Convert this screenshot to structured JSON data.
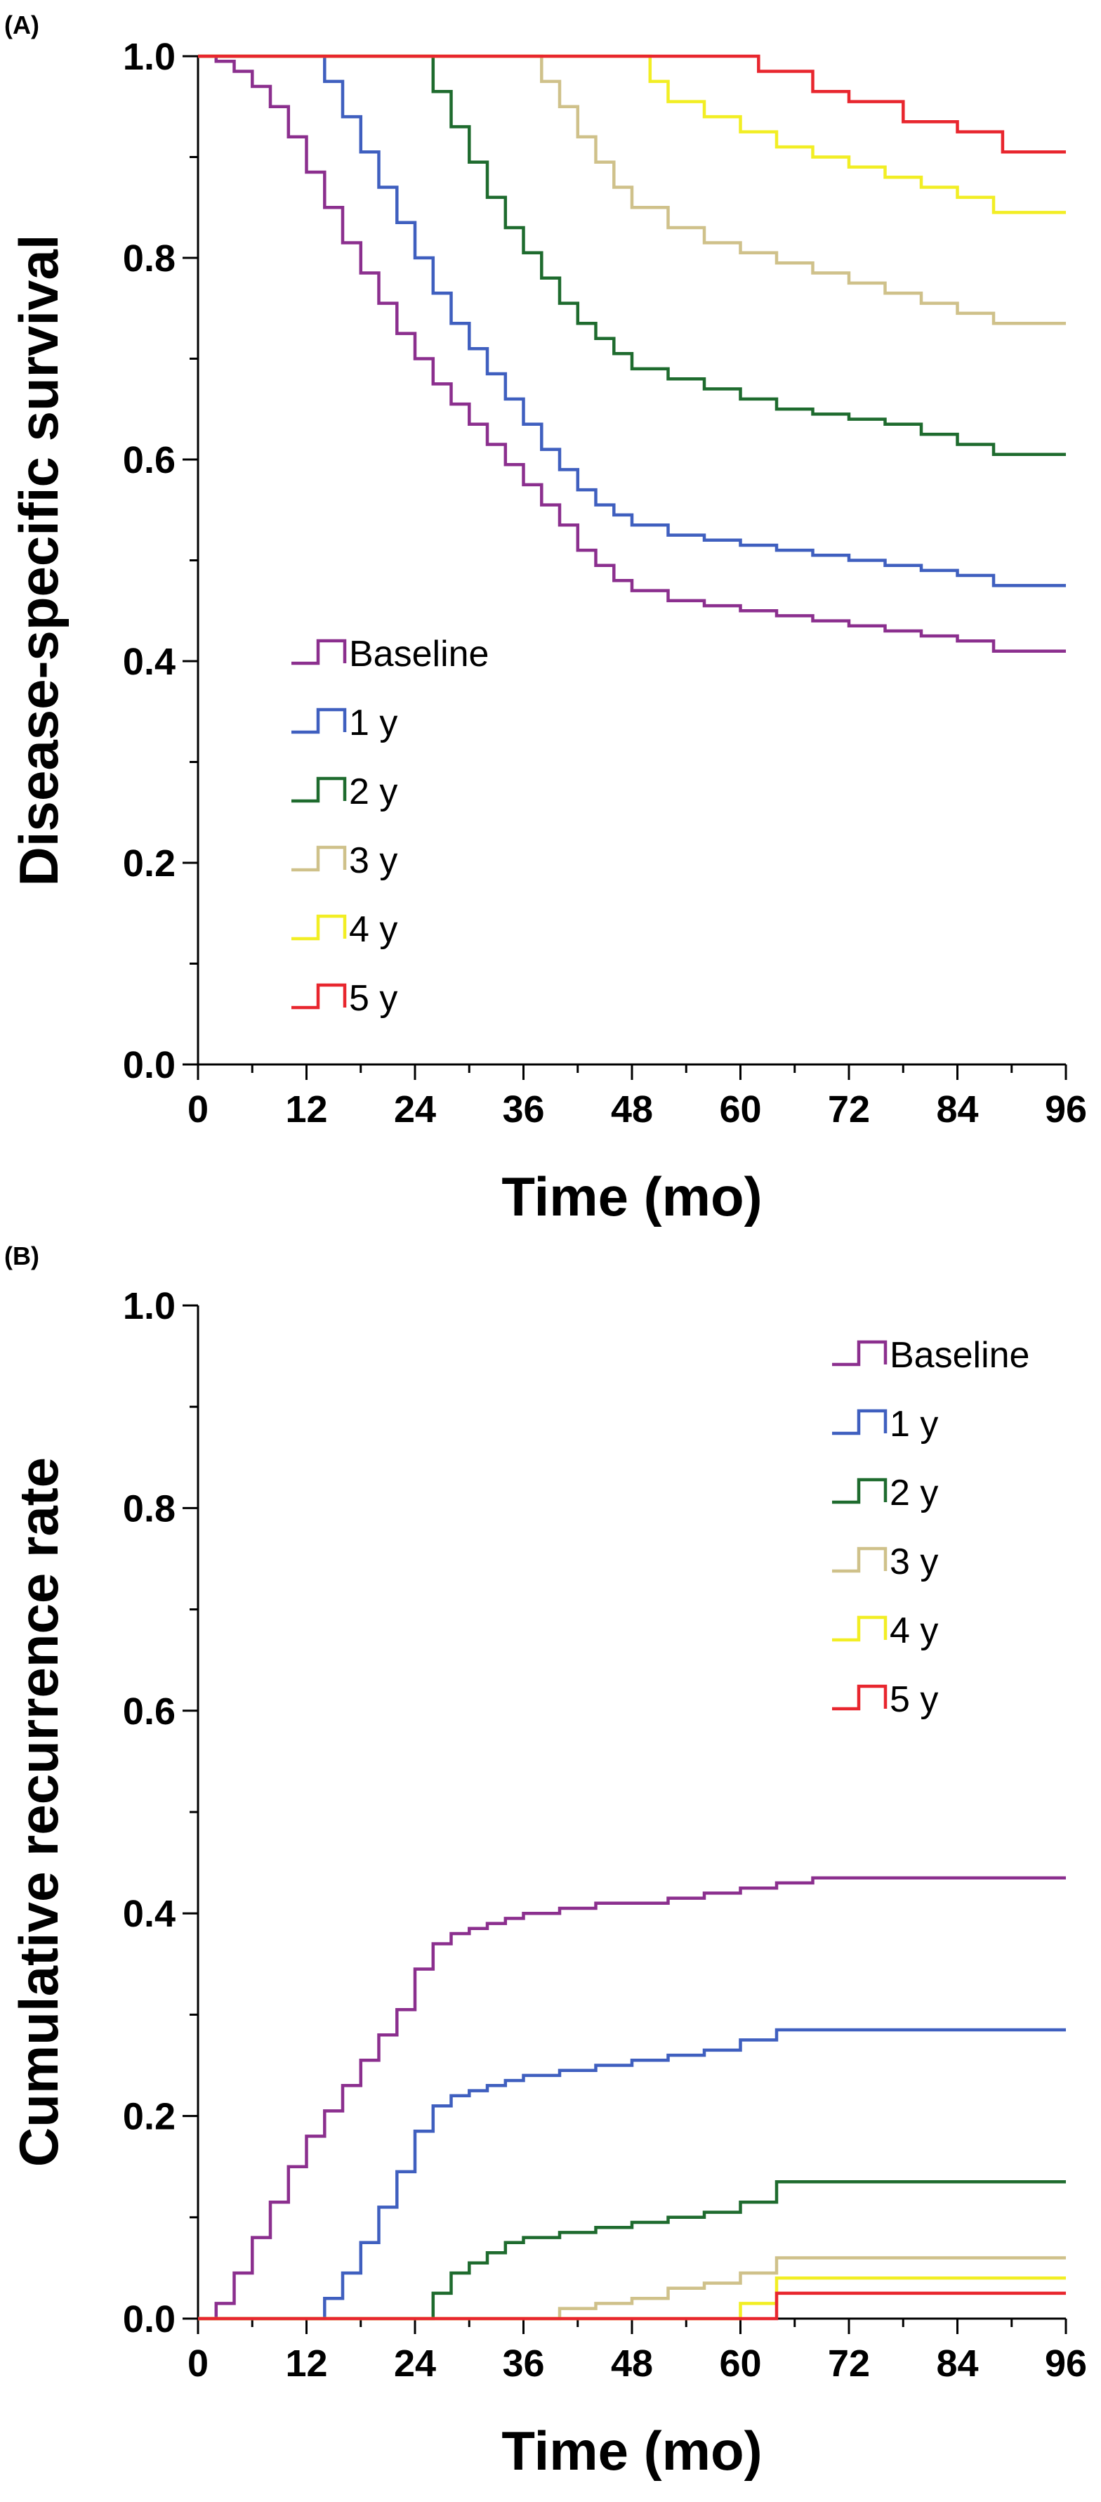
{
  "chart_data": [
    {
      "panel_label": "(A)",
      "type": "line",
      "step": true,
      "xlabel": "Time (mo)",
      "ylabel": "Disease-specific survival",
      "xlim": [
        0,
        96
      ],
      "ylim": [
        0,
        1.0
      ],
      "xticks": [
        "0",
        "12",
        "24",
        "36",
        "48",
        "60",
        "72",
        "84",
        "96"
      ],
      "yticks": [
        "0.0",
        "0.2",
        "0.4",
        "0.6",
        "0.8",
        "1.0"
      ],
      "grid": false,
      "legend_position": "lower-left",
      "series": [
        {
          "name": "Baseline",
          "color": "#8B2F8E",
          "x": [
            0,
            2,
            4,
            6,
            8,
            10,
            12,
            14,
            16,
            18,
            20,
            22,
            24,
            26,
            28,
            30,
            32,
            34,
            36,
            38,
            40,
            42,
            44,
            46,
            48,
            52,
            56,
            60,
            64,
            68,
            72,
            76,
            80,
            84,
            88,
            96
          ],
          "y": [
            1.0,
            0.995,
            0.985,
            0.97,
            0.95,
            0.92,
            0.885,
            0.85,
            0.815,
            0.785,
            0.755,
            0.725,
            0.7,
            0.675,
            0.655,
            0.635,
            0.615,
            0.595,
            0.575,
            0.555,
            0.535,
            0.51,
            0.495,
            0.48,
            0.47,
            0.46,
            0.455,
            0.45,
            0.445,
            0.44,
            0.435,
            0.43,
            0.425,
            0.42,
            0.41,
            0.41
          ]
        },
        {
          "name": "1 y",
          "color": "#3F5FBF",
          "x": [
            0,
            13,
            14,
            16,
            18,
            20,
            22,
            24,
            26,
            28,
            30,
            32,
            34,
            36,
            38,
            40,
            42,
            44,
            46,
            48,
            52,
            56,
            60,
            64,
            68,
            72,
            76,
            80,
            84,
            88,
            96
          ],
          "y": [
            1.0,
            1.0,
            0.975,
            0.94,
            0.905,
            0.87,
            0.835,
            0.8,
            0.765,
            0.735,
            0.71,
            0.685,
            0.66,
            0.635,
            0.61,
            0.59,
            0.57,
            0.555,
            0.545,
            0.535,
            0.525,
            0.52,
            0.515,
            0.51,
            0.505,
            0.5,
            0.495,
            0.49,
            0.485,
            0.475,
            0.475
          ]
        },
        {
          "name": "2 y",
          "color": "#1E6B2E",
          "x": [
            0,
            25,
            26,
            28,
            30,
            32,
            34,
            36,
            38,
            40,
            42,
            44,
            46,
            48,
            52,
            56,
            60,
            64,
            68,
            72,
            76,
            80,
            84,
            88,
            96
          ],
          "y": [
            1.0,
            1.0,
            0.965,
            0.93,
            0.895,
            0.86,
            0.83,
            0.805,
            0.78,
            0.755,
            0.735,
            0.72,
            0.705,
            0.69,
            0.68,
            0.67,
            0.66,
            0.65,
            0.645,
            0.64,
            0.635,
            0.625,
            0.615,
            0.605,
            0.605
          ]
        },
        {
          "name": "3 y",
          "color": "#CFC18A",
          "x": [
            0,
            37,
            38,
            40,
            42,
            44,
            46,
            48,
            52,
            56,
            60,
            64,
            68,
            72,
            76,
            80,
            84,
            88,
            96
          ],
          "y": [
            1.0,
            1.0,
            0.975,
            0.95,
            0.92,
            0.895,
            0.87,
            0.85,
            0.83,
            0.815,
            0.805,
            0.795,
            0.785,
            0.775,
            0.765,
            0.755,
            0.745,
            0.735,
            0.735
          ]
        },
        {
          "name": "4 y",
          "color": "#F2EE24",
          "x": [
            0,
            49,
            50,
            52,
            56,
            60,
            64,
            68,
            72,
            76,
            80,
            84,
            88,
            96
          ],
          "y": [
            1.0,
            1.0,
            0.975,
            0.955,
            0.94,
            0.925,
            0.91,
            0.9,
            0.89,
            0.88,
            0.87,
            0.86,
            0.845,
            0.845
          ]
        },
        {
          "name": "5 y",
          "color": "#E8262E",
          "x": [
            0,
            61,
            62,
            68,
            72,
            78,
            84,
            89,
            96
          ],
          "y": [
            1.0,
            1.0,
            0.985,
            0.965,
            0.955,
            0.935,
            0.925,
            0.905,
            0.905
          ]
        }
      ]
    },
    {
      "panel_label": "(B)",
      "type": "line",
      "step": true,
      "xlabel": "Time (mo)",
      "ylabel": "Cumulative recurrence rate",
      "xlim": [
        0,
        96
      ],
      "ylim": [
        0,
        1.0
      ],
      "xticks": [
        "0",
        "12",
        "24",
        "36",
        "48",
        "60",
        "72",
        "84",
        "96"
      ],
      "yticks": [
        "0.0",
        "0.2",
        "0.4",
        "0.6",
        "0.8",
        "1.0"
      ],
      "grid": false,
      "legend_position": "top-right",
      "series": [
        {
          "name": "Baseline",
          "color": "#8B2F8E",
          "x": [
            0,
            2,
            4,
            6,
            8,
            10,
            12,
            14,
            16,
            18,
            20,
            22,
            24,
            26,
            28,
            30,
            32,
            34,
            36,
            40,
            44,
            48,
            52,
            56,
            60,
            64,
            68,
            96
          ],
          "y": [
            0,
            0.015,
            0.045,
            0.08,
            0.115,
            0.15,
            0.18,
            0.205,
            0.23,
            0.255,
            0.28,
            0.305,
            0.345,
            0.37,
            0.38,
            0.385,
            0.39,
            0.395,
            0.4,
            0.405,
            0.41,
            0.41,
            0.415,
            0.42,
            0.425,
            0.43,
            0.435,
            0.435
          ]
        },
        {
          "name": "1 y",
          "color": "#3F5FBF",
          "x": [
            0,
            13,
            14,
            16,
            18,
            20,
            22,
            24,
            26,
            28,
            30,
            32,
            34,
            36,
            40,
            44,
            48,
            52,
            56,
            60,
            64,
            96
          ],
          "y": [
            0,
            0,
            0.02,
            0.045,
            0.075,
            0.11,
            0.145,
            0.185,
            0.21,
            0.22,
            0.225,
            0.23,
            0.235,
            0.24,
            0.245,
            0.25,
            0.255,
            0.26,
            0.265,
            0.275,
            0.285,
            0.285
          ]
        },
        {
          "name": "2 y",
          "color": "#1E6B2E",
          "x": [
            0,
            25,
            26,
            28,
            30,
            32,
            34,
            36,
            40,
            44,
            48,
            52,
            56,
            60,
            64,
            96
          ],
          "y": [
            0,
            0,
            0.025,
            0.045,
            0.055,
            0.065,
            0.075,
            0.08,
            0.085,
            0.09,
            0.095,
            0.1,
            0.105,
            0.115,
            0.135,
            0.135
          ]
        },
        {
          "name": "3 y",
          "color": "#CFC18A",
          "x": [
            0,
            38,
            40,
            44,
            48,
            52,
            56,
            60,
            64,
            96
          ],
          "y": [
            0,
            0,
            0.01,
            0.015,
            0.02,
            0.03,
            0.035,
            0.045,
            0.06,
            0.06
          ]
        },
        {
          "name": "4 y",
          "color": "#F2EE24",
          "x": [
            0,
            57,
            60,
            64,
            96
          ],
          "y": [
            0,
            0,
            0.015,
            0.04,
            0.04
          ]
        },
        {
          "name": "5 y",
          "color": "#E8262E",
          "x": [
            0,
            64,
            96
          ],
          "y": [
            0,
            0.025,
            0.025
          ]
        }
      ]
    }
  ]
}
